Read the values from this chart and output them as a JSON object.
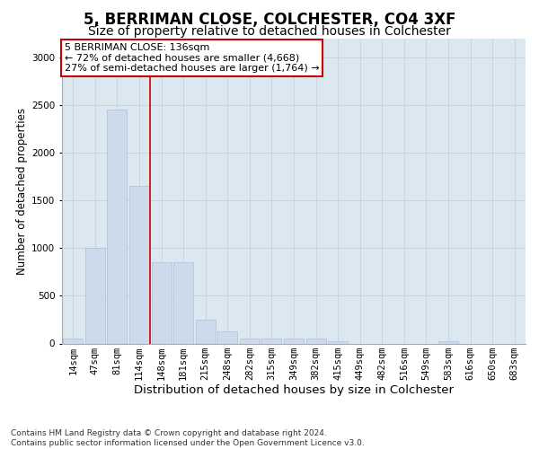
{
  "title": "5, BERRIMAN CLOSE, COLCHESTER, CO4 3XF",
  "subtitle": "Size of property relative to detached houses in Colchester",
  "xlabel": "Distribution of detached houses by size in Colchester",
  "ylabel": "Number of detached properties",
  "categories": [
    "14sqm",
    "47sqm",
    "81sqm",
    "114sqm",
    "148sqm",
    "181sqm",
    "215sqm",
    "248sqm",
    "282sqm",
    "315sqm",
    "349sqm",
    "382sqm",
    "415sqm",
    "449sqm",
    "482sqm",
    "516sqm",
    "549sqm",
    "583sqm",
    "616sqm",
    "650sqm",
    "683sqm"
  ],
  "values": [
    50,
    1000,
    2450,
    1650,
    850,
    850,
    250,
    125,
    50,
    50,
    50,
    50,
    25,
    0,
    0,
    0,
    0,
    25,
    0,
    0,
    0
  ],
  "bar_color": "#ccdaeb",
  "bar_edgecolor": "#aabfd8",
  "grid_color": "#c8d4df",
  "plot_bg_color": "#dce8f0",
  "fig_bg_color": "#ffffff",
  "vline_x": 3.5,
  "vline_color": "#cc0000",
  "annotation_text": "5 BERRIMAN CLOSE: 136sqm\n← 72% of detached houses are smaller (4,668)\n27% of semi-detached houses are larger (1,764) →",
  "annotation_box_color": "#cc0000",
  "annotation_bg": "#ffffff",
  "footer": "Contains HM Land Registry data © Crown copyright and database right 2024.\nContains public sector information licensed under the Open Government Licence v3.0.",
  "ylim": [
    0,
    3200
  ],
  "yticks": [
    0,
    500,
    1000,
    1500,
    2000,
    2500,
    3000
  ],
  "title_fontsize": 12,
  "subtitle_fontsize": 10,
  "xlabel_fontsize": 9.5,
  "ylabel_fontsize": 8.5,
  "tick_fontsize": 7.5,
  "annot_fontsize": 8,
  "footer_fontsize": 6.5
}
